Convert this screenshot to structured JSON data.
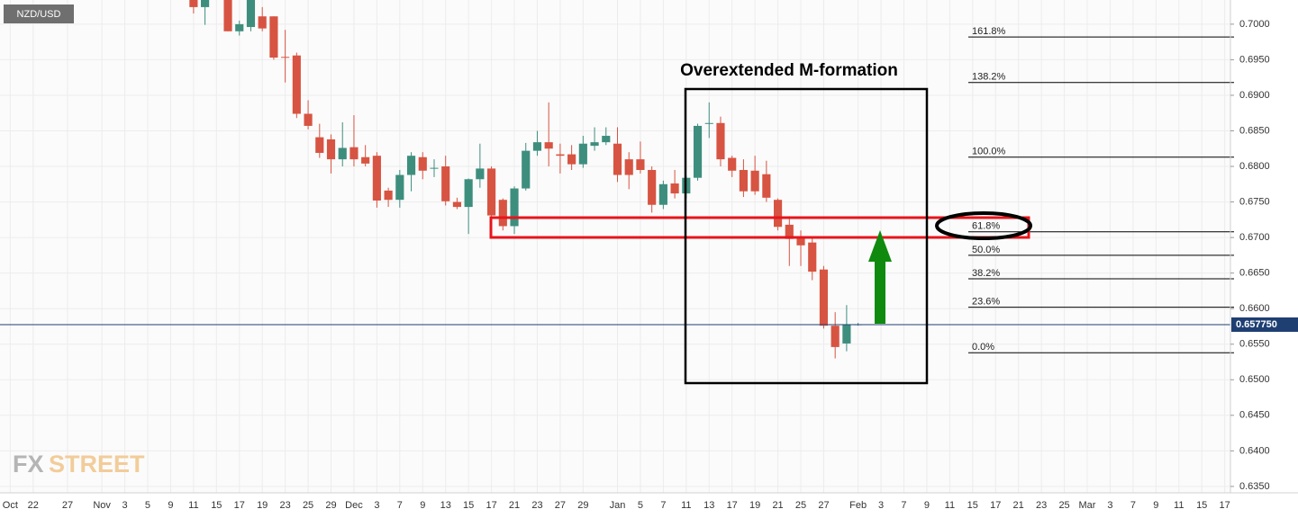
{
  "chart_data": {
    "type": "candlestick",
    "title": "NZD/USD",
    "annotation": "Overextended M-formation",
    "watermark": {
      "fx": "FX",
      "street": "STREET"
    },
    "up_color": "#3e8e7e",
    "down_color": "#d75442",
    "grid": true,
    "categories": [
      "Oct",
      null,
      "22",
      null,
      null,
      "27",
      null,
      null,
      "Nov",
      null,
      "3",
      null,
      "5",
      null,
      "9",
      null,
      "11",
      null,
      "15",
      null,
      "17",
      null,
      "19",
      null,
      "23",
      null,
      "25",
      null,
      "29",
      null,
      "Dec",
      null,
      "3",
      null,
      "7",
      null,
      "9",
      null,
      "13",
      null,
      "15",
      null,
      "17",
      null,
      "21",
      null,
      "23",
      null,
      "27",
      null,
      "29",
      null,
      null,
      "Jan",
      null,
      "5",
      null,
      "7",
      null,
      "11",
      null,
      "13",
      null,
      "17",
      null,
      "19",
      null,
      "21",
      null,
      "25",
      null,
      "27",
      null,
      null,
      "Feb",
      null,
      "3",
      null,
      "7",
      null,
      "9",
      null,
      "11",
      null,
      "15",
      null,
      "17",
      null,
      "21",
      null,
      "23",
      null,
      "25",
      null,
      "Mar",
      null,
      "3",
      null,
      "7",
      null,
      "9",
      null,
      "11",
      null,
      "15",
      null,
      "17"
    ],
    "open": [
      null,
      null,
      null,
      null,
      null,
      null,
      null,
      null,
      null,
      null,
      null,
      null,
      null,
      null,
      null,
      null,
      0.7034,
      0.7024,
      null,
      0.7034,
      0.699,
      0.6996,
      0.7011,
      0.7011,
      0.6954,
      0.6956,
      0.6874,
      0.6841,
      0.6838,
      0.681,
      0.6827,
      0.6813,
      0.6815,
      0.6766,
      0.6753,
      0.6788,
      0.6813,
      0.6797,
      0.68,
      0.675,
      0.6743,
      0.6782,
      0.6797,
      0.6753,
      0.6716,
      0.6769,
      0.6822,
      0.6834,
      0.6817,
      0.6817,
      0.6803,
      0.6829,
      0.6834,
      0.6832,
      0.681,
      0.681,
      0.6795,
      0.6746,
      0.6776,
      0.6762,
      0.6784,
      0.686,
      0.6861,
      0.6812,
      0.6795,
      0.6794,
      0.6789,
      0.6753,
      0.6718,
      0.67,
      0.6693,
      0.6655,
      0.6576,
      0.6551,
      0.6578,
      null,
      null,
      null,
      null,
      null,
      null,
      null,
      null,
      null,
      null,
      null,
      null,
      null,
      null,
      null,
      null,
      null,
      null,
      null,
      null,
      null,
      null,
      null,
      null,
      null,
      null,
      null,
      null,
      null,
      null,
      null,
      null
    ],
    "high": [
      null,
      null,
      null,
      null,
      null,
      null,
      null,
      null,
      null,
      null,
      null,
      null,
      null,
      null,
      null,
      null,
      0.7034,
      0.7034,
      null,
      0.7034,
      0.7005,
      0.7034,
      0.7024,
      0.7011,
      0.6992,
      0.696,
      0.6893,
      0.686,
      0.6845,
      0.6862,
      0.6872,
      0.683,
      0.682,
      0.677,
      0.6795,
      0.682,
      0.682,
      0.681,
      0.6815,
      0.6756,
      0.6783,
      0.6832,
      0.68,
      0.6755,
      0.6772,
      0.6833,
      0.685,
      0.689,
      0.6832,
      0.683,
      0.6843,
      0.6855,
      0.6855,
      0.6855,
      0.682,
      0.6835,
      0.68,
      0.678,
      0.6795,
      0.6787,
      0.686,
      0.689,
      0.687,
      0.6815,
      0.681,
      0.6815,
      0.6808,
      0.6755,
      0.673,
      0.671,
      0.67,
      0.666,
      0.6595,
      0.6605,
      0.658,
      null,
      null,
      null,
      null,
      null,
      null,
      null,
      null,
      null,
      null,
      null,
      null,
      null,
      null,
      null,
      null,
      null,
      null,
      null,
      null,
      null,
      null,
      null,
      null,
      null,
      null,
      null,
      null,
      null,
      null,
      null,
      null
    ],
    "low": [
      null,
      null,
      null,
      null,
      null,
      null,
      null,
      null,
      null,
      null,
      null,
      null,
      null,
      null,
      null,
      null,
      0.7015,
      0.6999,
      null,
      0.699,
      0.6984,
      0.699,
      0.699,
      0.695,
      0.6918,
      0.6868,
      0.6852,
      0.6812,
      0.679,
      0.68,
      0.68,
      0.68,
      0.6742,
      0.6743,
      0.6742,
      0.6765,
      0.6782,
      0.6785,
      0.6745,
      0.674,
      0.6705,
      0.677,
      0.672,
      0.671,
      0.6705,
      0.6766,
      0.6815,
      0.68,
      0.679,
      0.6795,
      0.6798,
      0.6822,
      0.683,
      0.6778,
      0.6768,
      0.679,
      0.6735,
      0.674,
      0.6755,
      0.6755,
      0.678,
      0.684,
      0.68,
      0.6785,
      0.6757,
      0.676,
      0.675,
      0.671,
      0.666,
      0.666,
      0.664,
      0.6572,
      0.653,
      0.654,
      0.6576,
      null,
      null,
      null,
      null,
      null,
      null,
      null,
      null,
      null,
      null,
      null,
      null,
      null,
      null,
      null,
      null,
      null,
      null,
      null,
      null,
      null,
      null,
      null,
      null,
      null,
      null,
      null,
      null,
      null,
      null,
      null,
      null
    ],
    "close": [
      null,
      null,
      null,
      null,
      null,
      null,
      null,
      null,
      null,
      null,
      null,
      null,
      null,
      null,
      null,
      null,
      0.7024,
      0.7034,
      null,
      0.699,
      0.7,
      0.7034,
      0.6994,
      0.6953,
      0.6953,
      0.6874,
      0.6857,
      0.6819,
      0.681,
      0.6826,
      0.681,
      0.6804,
      0.6752,
      0.6753,
      0.6788,
      0.6815,
      0.6794,
      0.6798,
      0.6751,
      0.6743,
      0.6782,
      0.6797,
      0.6731,
      0.6716,
      0.6769,
      0.6822,
      0.6834,
      0.6825,
      0.6815,
      0.6803,
      0.6832,
      0.6834,
      0.6843,
      0.6788,
      0.6788,
      0.6795,
      0.6746,
      0.6775,
      0.6762,
      0.6784,
      0.6857,
      0.6861,
      0.681,
      0.6794,
      0.6765,
      0.6765,
      0.6756,
      0.6715,
      0.6698,
      0.6689,
      0.6652,
      0.6576,
      0.6546,
      0.6578,
      0.6578,
      null,
      null,
      null,
      null,
      null,
      null,
      null,
      null,
      null,
      null,
      null,
      null,
      null,
      null,
      null,
      null,
      null,
      null,
      null,
      null,
      null,
      null,
      null,
      null,
      null,
      null,
      null,
      null,
      null,
      null,
      null,
      null
    ],
    "last_price": {
      "value": 0.65775,
      "label": "0.657750"
    },
    "fib": {
      "color": "#000000",
      "levels": [
        {
          "label": "161.8%",
          "value": 0.6982
        },
        {
          "label": "138.2%",
          "value": 0.6918
        },
        {
          "label": "100.0%",
          "value": 0.6813
        },
        {
          "label": "61.8%",
          "value": 0.6708
        },
        {
          "label": "50.0%",
          "value": 0.6675
        },
        {
          "label": "38.2%",
          "value": 0.6642
        },
        {
          "label": "23.6%",
          "value": 0.6602
        },
        {
          "label": "0.0%",
          "value": 0.6538
        }
      ]
    },
    "ylim": [
      0.6341,
      0.7034
    ],
    "yticks": [
      {
        "value": 0.7,
        "label": "0.7000"
      },
      {
        "value": 0.695,
        "label": "0.6950"
      },
      {
        "value": 0.69,
        "label": "0.6900"
      },
      {
        "value": 0.685,
        "label": "0.6850"
      },
      {
        "value": 0.68,
        "label": "0.6800"
      },
      {
        "value": 0.675,
        "label": "0.6750"
      },
      {
        "value": 0.67,
        "label": "0.6700"
      },
      {
        "value": 0.665,
        "label": "0.6650"
      },
      {
        "value": 0.66,
        "label": "0.6600"
      },
      {
        "value": 0.655,
        "label": "0.6550"
      },
      {
        "value": 0.65,
        "label": "0.6500"
      },
      {
        "value": 0.645,
        "label": "0.6450"
      },
      {
        "value": 0.64,
        "label": "0.6400"
      },
      {
        "value": 0.635,
        "label": "0.6350"
      }
    ]
  }
}
